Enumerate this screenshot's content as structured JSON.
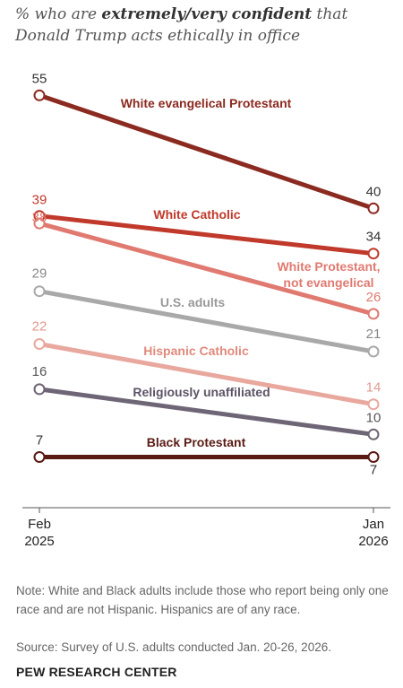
{
  "title": {
    "part1": "% who are ",
    "emph": "extremely/very confident",
    "part2": " that Donald Trump acts ethically in office"
  },
  "chart_data": {
    "type": "line",
    "x": [
      "Feb 2025",
      "Jan 2026"
    ],
    "x_ticks": [
      {
        "top": "Feb",
        "bottom": "2025"
      },
      {
        "top": "Jan",
        "bottom": "2026"
      }
    ],
    "series": [
      {
        "name": "White evangelical Protestant",
        "values": [
          55,
          40
        ],
        "color": "#8b2a20"
      },
      {
        "name": "White Catholic",
        "values": [
          39,
          34
        ],
        "color": "#c0392b"
      },
      {
        "name": "White Protestant,\nnot evangelical",
        "values": [
          38,
          26
        ],
        "color": "#e07a70"
      },
      {
        "name": "U.S. adults",
        "values": [
          29,
          21
        ],
        "color": "#a9a9a9"
      },
      {
        "name": "Hispanic Catholic",
        "values": [
          22,
          14
        ],
        "color": "#e8a89e"
      },
      {
        "name": "Religiously unaffiliated",
        "values": [
          16,
          10
        ],
        "color": "#6e6576"
      },
      {
        "name": "Black Protestant",
        "values": [
          7,
          7
        ],
        "color": "#5a1b14"
      }
    ]
  },
  "note": "Note: White and Black adults include those who report being only one race and are not Hispanic. Hispanics are of any race.",
  "source": "Source: Survey of U.S. adults conducted Jan. 20-26, 2026.",
  "brand": "PEW RESEARCH CENTER"
}
